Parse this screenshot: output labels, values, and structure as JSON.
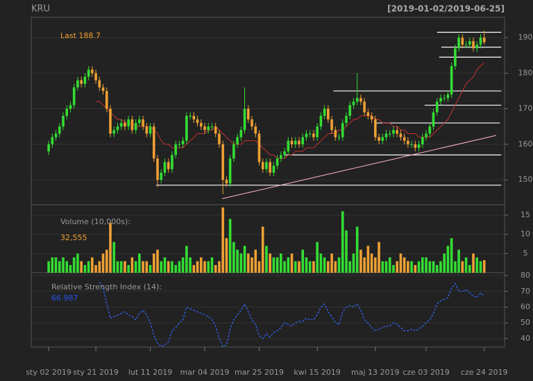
{
  "chart_data": [
    {
      "type": "candlestick",
      "title": "KRU",
      "subtitle": "[2019-01-02/2019-06-25]",
      "last_label": "Last 188.7",
      "up_color": "#33dd33",
      "down_color": "#eea035",
      "grid": true,
      "xlim": [
        -4.8,
        125.6
      ],
      "ylim": [
        143,
        195.7
      ],
      "yticks": [
        150,
        160,
        170,
        180,
        190
      ],
      "xticks": [
        {
          "value": 0,
          "label": "sty 02 2019"
        },
        {
          "value": 13,
          "label": "sty 21 2019"
        },
        {
          "value": 28,
          "label": "lut 11 2019"
        },
        {
          "value": 43,
          "label": "mar 04 2019"
        },
        {
          "value": 58,
          "label": "mar 25 2019"
        },
        {
          "value": 74,
          "label": "kwi 15 2019"
        },
        {
          "value": 90,
          "label": "maj 13 2019"
        },
        {
          "value": 104,
          "label": "cze 03 2019"
        },
        {
          "value": 120,
          "label": "cze 24 2019"
        }
      ],
      "open": [
        158,
        160,
        162,
        163,
        165,
        168,
        170,
        171,
        176,
        178,
        177,
        179,
        181,
        180,
        178,
        176,
        175,
        170,
        163,
        164,
        165,
        166,
        165,
        167,
        164,
        166,
        167,
        165,
        163,
        165,
        156,
        150,
        152,
        155,
        153,
        157,
        160,
        160,
        161,
        168,
        168,
        167,
        166,
        165,
        164,
        165,
        165,
        163,
        160,
        150,
        149,
        156,
        160,
        162,
        164,
        170,
        167,
        165,
        163,
        155,
        153,
        155,
        152,
        154,
        156,
        157,
        158,
        161,
        160,
        161,
        160,
        162,
        163,
        163,
        162,
        165,
        168,
        170,
        167,
        164,
        162,
        162,
        166,
        168,
        171,
        172,
        173,
        172,
        169,
        168,
        167,
        162,
        161,
        162,
        163,
        163,
        164,
        163,
        162,
        161,
        160,
        160,
        159,
        160,
        162,
        163,
        165,
        169,
        172,
        173,
        173,
        174,
        182,
        187,
        190,
        188,
        188,
        189,
        187,
        188,
        190
      ],
      "high": [
        161,
        163,
        164,
        166,
        169,
        171,
        172,
        177,
        179,
        179,
        180,
        182,
        182,
        181,
        179,
        177,
        176,
        171,
        165,
        166,
        167,
        167,
        168,
        168,
        167,
        168,
        168,
        166,
        166,
        166,
        157,
        153,
        156,
        156,
        158,
        161,
        161,
        162,
        169,
        169,
        169,
        168,
        167,
        166,
        166,
        166,
        166,
        164,
        161,
        151,
        157,
        161,
        163,
        165,
        176,
        171,
        168,
        166,
        164,
        156,
        156,
        156,
        155,
        157,
        158,
        159,
        162,
        162,
        162,
        162,
        163,
        164,
        164,
        164,
        166,
        169,
        171,
        171,
        168,
        165,
        163,
        167,
        169,
        172,
        173,
        180,
        174,
        173,
        170,
        169,
        168,
        163,
        163,
        164,
        164,
        165,
        165,
        164,
        163,
        162,
        161,
        161,
        161,
        163,
        164,
        166,
        170,
        173,
        174,
        174,
        175,
        183,
        188,
        191,
        191,
        189,
        190,
        190,
        189,
        191,
        192
      ],
      "low": [
        157,
        159,
        161,
        162,
        164,
        167,
        169,
        170,
        175,
        176,
        176,
        178,
        179,
        177,
        175,
        174,
        169,
        162,
        162,
        163,
        164,
        164,
        164,
        163,
        163,
        165,
        164,
        162,
        162,
        155,
        148,
        149,
        151,
        152,
        152,
        156,
        159,
        159,
        160,
        167,
        166,
        165,
        164,
        163,
        163,
        164,
        162,
        159,
        146,
        148,
        148,
        155,
        159,
        161,
        163,
        166,
        164,
        162,
        154,
        152,
        152,
        151,
        151,
        153,
        155,
        156,
        157,
        159,
        159,
        159,
        159,
        161,
        162,
        161,
        161,
        164,
        167,
        166,
        163,
        161,
        161,
        161,
        165,
        167,
        170,
        171,
        171,
        168,
        167,
        166,
        161,
        160,
        160,
        161,
        162,
        162,
        162,
        161,
        160,
        159,
        159,
        158,
        158,
        159,
        161,
        162,
        164,
        168,
        171,
        172,
        172,
        173,
        181,
        186,
        187,
        187,
        187,
        186,
        186,
        187,
        188
      ],
      "close": [
        160,
        162,
        163,
        165,
        168,
        170,
        171,
        176,
        178,
        177,
        179,
        181,
        180,
        178,
        176,
        175,
        170,
        163,
        164,
        165,
        166,
        165,
        167,
        164,
        166,
        167,
        165,
        163,
        165,
        156,
        150,
        152,
        155,
        153,
        157,
        160,
        160,
        161,
        168,
        168,
        167,
        166,
        165,
        164,
        165,
        165,
        163,
        160,
        150,
        149,
        156,
        160,
        162,
        164,
        170,
        167,
        165,
        163,
        155,
        153,
        155,
        152,
        154,
        156,
        157,
        158,
        161,
        160,
        161,
        160,
        162,
        163,
        163,
        162,
        165,
        168,
        170,
        167,
        164,
        162,
        162,
        166,
        168,
        171,
        172,
        173,
        172,
        169,
        168,
        167,
        162,
        161,
        162,
        163,
        163,
        164,
        163,
        162,
        161,
        160,
        160,
        159,
        160,
        162,
        163,
        165,
        169,
        172,
        173,
        173,
        174,
        182,
        187,
        190,
        188,
        188,
        189,
        187,
        188,
        190,
        188.7
      ],
      "ma": {
        "color": "#c83232",
        "values": [
          null,
          null,
          null,
          null,
          null,
          null,
          null,
          null,
          null,
          null,
          null,
          null,
          null,
          172,
          172,
          171,
          170,
          169,
          168,
          167,
          167,
          166,
          166,
          166,
          165,
          165,
          165,
          165,
          165,
          164,
          163,
          161,
          160,
          160,
          159,
          159,
          159,
          159,
          160,
          161,
          162,
          163,
          163,
          163,
          164,
          164,
          165,
          164,
          163,
          162,
          161,
          160,
          160,
          160,
          161,
          161,
          161,
          161,
          160,
          159,
          158,
          157,
          157,
          156,
          156,
          156,
          157,
          157,
          158,
          158,
          158,
          159,
          159,
          159,
          160,
          161,
          162,
          163,
          163,
          163,
          164,
          164,
          165,
          166,
          167,
          167,
          168,
          168,
          168,
          168,
          167,
          167,
          166,
          166,
          166,
          165,
          165,
          164,
          164,
          163,
          163,
          163,
          162,
          162,
          162,
          162,
          163,
          164,
          165,
          166,
          167,
          169,
          171,
          173,
          175,
          177,
          178,
          179,
          181,
          182,
          183
        ]
      },
      "levels": [
        {
          "from": 29.6,
          "to": 124.7,
          "value": 148.5
        },
        {
          "from": 65,
          "to": 124.7,
          "value": 157
        },
        {
          "from": 89.9,
          "to": 124.3,
          "value": 166
        },
        {
          "from": 103.6,
          "to": 124.7,
          "value": 171
        },
        {
          "from": 78.4,
          "to": 124.7,
          "value": 175
        },
        {
          "from": 107.6,
          "to": 124.7,
          "value": 184.5
        },
        {
          "from": 108.2,
          "to": 124.7,
          "value": 187.3
        },
        {
          "from": 107,
          "to": 124.7,
          "value": 191.5
        }
      ],
      "trend": {
        "color": "#ffb8c8",
        "x": [
          47.8,
          123.3
        ],
        "y": [
          144.7,
          162.5
        ]
      }
    },
    {
      "type": "bar",
      "title": "Volume (10,000s):",
      "last_label": "32,555",
      "ylim": [
        0,
        17.7
      ],
      "yticks": [
        5,
        10,
        15
      ],
      "values": [
        3,
        4,
        4,
        3,
        4,
        3,
        2,
        4,
        5,
        3,
        2,
        3,
        4,
        2,
        3,
        5,
        6,
        13,
        8,
        3,
        3,
        3,
        2,
        4,
        3,
        5,
        3,
        3,
        2,
        5,
        6,
        3,
        4,
        3,
        3,
        2,
        3,
        4,
        7,
        4,
        2,
        3,
        4,
        3,
        3,
        4,
        2,
        3,
        17,
        9,
        14,
        8,
        6,
        5,
        7,
        5,
        4,
        6,
        3,
        12,
        7,
        5,
        4,
        4,
        5,
        3,
        4,
        5,
        3,
        3,
        6,
        4,
        3,
        3,
        8,
        5,
        4,
        3,
        5,
        3,
        4,
        16,
        11,
        3,
        5,
        12,
        6,
        4,
        7,
        5,
        4,
        8,
        3,
        3,
        4,
        2,
        3,
        5,
        4,
        3,
        3,
        2,
        3,
        4,
        4,
        3,
        3,
        2,
        3,
        5,
        7,
        9,
        3,
        6,
        3,
        4,
        2,
        5,
        4,
        3,
        3.2555
      ]
    },
    {
      "type": "line",
      "title": "Relative Strength Index (14):",
      "last_label": "66.987",
      "color": "#3366ff",
      "ylim": [
        34.7,
        81.8
      ],
      "yticks": [
        40,
        50,
        60,
        70,
        80
      ],
      "values": [
        null,
        null,
        null,
        null,
        null,
        null,
        null,
        null,
        null,
        null,
        null,
        null,
        null,
        null,
        76,
        72,
        62,
        53,
        54,
        55,
        56,
        57,
        55,
        54,
        52,
        56,
        58,
        55,
        50,
        42,
        37,
        35,
        36,
        38,
        45,
        47,
        50,
        52,
        60,
        59,
        58,
        57,
        56,
        55,
        54,
        52,
        48,
        40,
        35,
        36,
        46,
        52,
        55,
        58,
        62,
        57,
        52,
        49,
        42,
        40,
        43,
        41,
        44,
        45,
        47,
        50,
        49,
        48,
        50,
        51,
        51,
        53,
        52,
        52,
        55,
        60,
        62,
        57,
        54,
        50,
        49,
        57,
        60,
        61,
        60,
        62,
        58,
        52,
        50,
        47,
        45,
        46,
        47,
        48,
        48,
        50,
        49,
        47,
        45,
        45,
        46,
        45,
        46,
        48,
        50,
        52,
        56,
        62,
        64,
        65,
        66,
        72,
        75,
        70,
        70,
        71,
        69,
        67,
        66,
        69,
        66.987
      ]
    }
  ]
}
